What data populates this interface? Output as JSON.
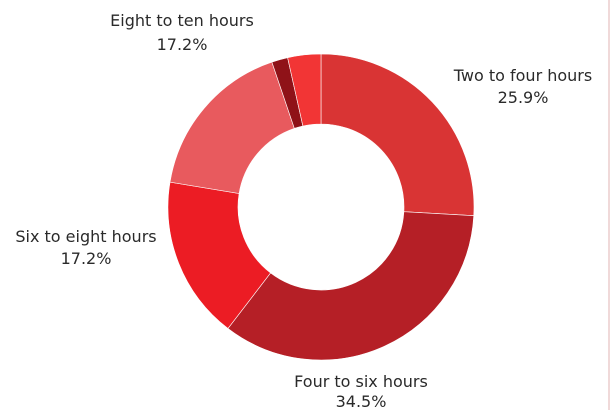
{
  "chart_data": {
    "type": "pie",
    "variant": "donut",
    "slices": [
      {
        "label": "Two to four hours",
        "value": 25.9,
        "value_label": "25.9%",
        "color": "#d93434"
      },
      {
        "label": "Four to six hours",
        "value": 34.5,
        "value_label": "34.5%",
        "color": "#b51f26"
      },
      {
        "label": "Six to eight hours",
        "value": 17.2,
        "value_label": "17.2%",
        "color": "#ec1c24"
      },
      {
        "label": "Eight to ten hours",
        "value": 17.2,
        "value_label": "17.2%",
        "color": "#e85a5e"
      },
      {
        "label": "",
        "value": 1.7,
        "value_label": "",
        "color": "#8f1218"
      },
      {
        "label": "",
        "value": 3.5,
        "value_label": "",
        "color": "#f23535"
      }
    ],
    "legend": "none",
    "grid": false
  }
}
